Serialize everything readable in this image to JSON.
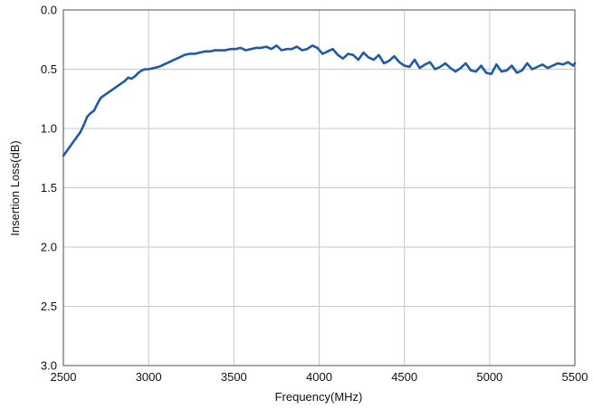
{
  "chart_data": {
    "type": "line",
    "title": "",
    "xlabel": "Frequency(MHz)",
    "ylabel": "Insertion Loss(dB)",
    "xlim": [
      2500,
      5500
    ],
    "ylim": [
      0.0,
      3.0
    ],
    "y_inverted": true,
    "grid": true,
    "legend": "none",
    "x_ticks": [
      "2500",
      "3000",
      "3500",
      "4000",
      "4500",
      "5000",
      "5500"
    ],
    "y_ticks": [
      "0.0",
      "0.5",
      "1.0",
      "1.5",
      "2.0",
      "2.5",
      "3.0"
    ],
    "series": [
      {
        "color": "#1f5aa6",
        "x": [
          2500,
          2520,
          2540,
          2560,
          2580,
          2600,
          2620,
          2640,
          2660,
          2680,
          2700,
          2720,
          2740,
          2760,
          2780,
          2800,
          2820,
          2840,
          2860,
          2880,
          2900,
          2920,
          2940,
          2960,
          2980,
          3000,
          3030,
          3060,
          3090,
          3120,
          3150,
          3180,
          3210,
          3240,
          3270,
          3300,
          3330,
          3360,
          3390,
          3420,
          3450,
          3480,
          3510,
          3540,
          3570,
          3600,
          3630,
          3660,
          3690,
          3720,
          3750,
          3780,
          3810,
          3840,
          3870,
          3900,
          3930,
          3960,
          3990,
          4020,
          4050,
          4080,
          4110,
          4140,
          4170,
          4200,
          4230,
          4260,
          4290,
          4320,
          4350,
          4380,
          4410,
          4440,
          4470,
          4500,
          4530,
          4560,
          4590,
          4620,
          4650,
          4680,
          4710,
          4740,
          4770,
          4800,
          4830,
          4860,
          4890,
          4920,
          4950,
          4980,
          5010,
          5040,
          5070,
          5100,
          5130,
          5160,
          5190,
          5220,
          5250,
          5280,
          5310,
          5340,
          5370,
          5400,
          5430,
          5460,
          5490,
          5500
        ],
        "values": [
          1.23,
          1.19,
          1.15,
          1.11,
          1.07,
          1.03,
          0.97,
          0.9,
          0.87,
          0.85,
          0.79,
          0.74,
          0.72,
          0.7,
          0.68,
          0.66,
          0.64,
          0.62,
          0.6,
          0.57,
          0.58,
          0.56,
          0.53,
          0.51,
          0.5,
          0.5,
          0.49,
          0.48,
          0.46,
          0.44,
          0.42,
          0.4,
          0.38,
          0.37,
          0.37,
          0.36,
          0.35,
          0.35,
          0.34,
          0.34,
          0.34,
          0.33,
          0.33,
          0.32,
          0.34,
          0.33,
          0.32,
          0.32,
          0.31,
          0.33,
          0.3,
          0.34,
          0.33,
          0.33,
          0.31,
          0.34,
          0.33,
          0.3,
          0.32,
          0.37,
          0.35,
          0.33,
          0.38,
          0.41,
          0.37,
          0.38,
          0.42,
          0.36,
          0.4,
          0.42,
          0.38,
          0.45,
          0.43,
          0.39,
          0.44,
          0.47,
          0.48,
          0.42,
          0.49,
          0.46,
          0.44,
          0.5,
          0.48,
          0.45,
          0.49,
          0.52,
          0.49,
          0.45,
          0.51,
          0.52,
          0.47,
          0.53,
          0.54,
          0.46,
          0.52,
          0.51,
          0.47,
          0.53,
          0.51,
          0.45,
          0.5,
          0.48,
          0.46,
          0.49,
          0.47,
          0.45,
          0.46,
          0.44,
          0.47,
          0.45
        ]
      }
    ]
  }
}
